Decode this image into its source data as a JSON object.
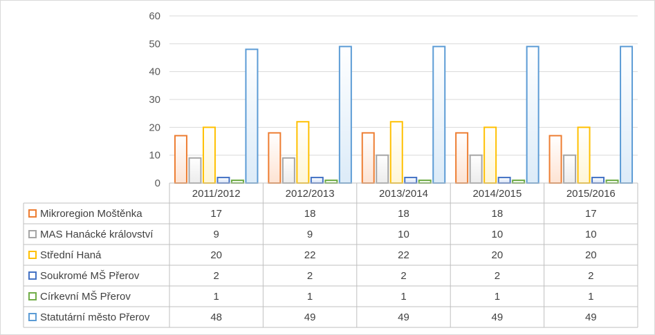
{
  "chart_data": {
    "type": "bar",
    "title": "",
    "xlabel": "",
    "ylabel": "",
    "ylim": [
      0,
      60
    ],
    "yticks": [
      0,
      10,
      20,
      30,
      40,
      50,
      60
    ],
    "grid": true,
    "legend": "data-table-left",
    "categories": [
      "2011/2012",
      "2012/2013",
      "2013/2014",
      "2014/2015",
      "2015/2016"
    ],
    "series": [
      {
        "name": "Mikroregion Moštěnka",
        "values": [
          17,
          18,
          18,
          18,
          17
        ],
        "color": "#ed7d31",
        "light": "#fde3d3"
      },
      {
        "name": "MAS Hanácké království",
        "values": [
          9,
          9,
          10,
          10,
          10
        ],
        "color": "#a5a5a5",
        "light": "#ececec"
      },
      {
        "name": "Střední Haná",
        "values": [
          20,
          22,
          22,
          20,
          20
        ],
        "color": "#ffc000",
        "light": "#fff6d6"
      },
      {
        "name": "Soukromé MŠ Přerov",
        "values": [
          2,
          2,
          2,
          2,
          2
        ],
        "color": "#4472c4",
        "light": "#d5e1f6"
      },
      {
        "name": "Církevní MŠ Přerov",
        "values": [
          1,
          1,
          1,
          1,
          1
        ],
        "color": "#70ad47",
        "light": "#e0f0d6"
      },
      {
        "name": "Statutární město Přerov",
        "values": [
          48,
          49,
          49,
          49,
          49
        ],
        "color": "#5b9bd5",
        "light": "#dcebf8"
      }
    ]
  }
}
